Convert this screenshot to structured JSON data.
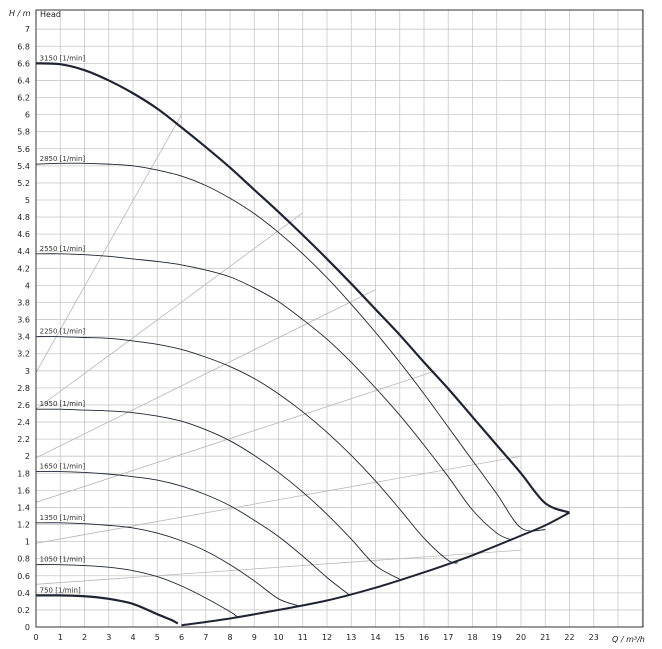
{
  "chart_data": {
    "type": "line",
    "title": "Head",
    "xlabel": "Q / m³/h",
    "ylabel": "H / m",
    "xlim": [
      0,
      25
    ],
    "ylim": [
      0,
      7.2
    ],
    "x_ticks": [
      0,
      1,
      2,
      3,
      4,
      5,
      6,
      7,
      8,
      9,
      10,
      11,
      12,
      13,
      14,
      15,
      16,
      17,
      18,
      19,
      20,
      21,
      22,
      23
    ],
    "x_tick_labels": [
      "0",
      "1",
      "2",
      "3",
      "4",
      "5",
      "6",
      "7",
      "8",
      "9",
      "10",
      "11",
      "12",
      "13",
      "14",
      "15",
      "16",
      "17",
      "18",
      "19",
      "20",
      "21",
      "22",
      "23"
    ],
    "y_ticks": [
      0,
      0.2,
      0.4,
      0.6,
      0.8,
      1,
      1.2,
      1.4,
      1.6,
      1.8,
      2,
      2.2,
      2.4,
      2.6,
      2.8,
      3,
      3.2,
      3.4,
      3.6,
      3.8,
      4,
      4.2,
      4.4,
      4.6,
      4.8,
      5,
      5.2,
      5.4,
      5.6,
      5.8,
      6,
      6.2,
      6.4,
      6.6,
      6.8,
      7
    ],
    "y_tick_labels": [
      "0",
      "0.2",
      "0.4",
      "0.6",
      "0.8",
      "1",
      "1.2",
      "1.4",
      "1.6",
      "1.8",
      "2",
      "2.2",
      "2.4",
      "2.6",
      "2.8",
      "3",
      "3.2",
      "3.4",
      "3.6",
      "3.8",
      "4",
      "4.2",
      "4.4",
      "4.6",
      "4.8",
      "5",
      "5.2",
      "5.4",
      "5.6",
      "5.8",
      "6",
      "6.2",
      "6.4",
      "6.6",
      "6.8",
      "7"
    ],
    "grid": true,
    "series": [
      {
        "name": "3150 [1/min]",
        "thick": true,
        "x": [
          0,
          1,
          2,
          3,
          4,
          5,
          6,
          7,
          8,
          9,
          10,
          11,
          12,
          13,
          14,
          15,
          16,
          17,
          18,
          19,
          20,
          21,
          22
        ],
        "y": [
          6.6,
          6.59,
          6.52,
          6.4,
          6.25,
          6.07,
          5.85,
          5.62,
          5.38,
          5.12,
          4.86,
          4.59,
          4.31,
          4.02,
          3.72,
          3.42,
          3.1,
          2.79,
          2.46,
          2.13,
          1.8,
          1.45,
          1.34
        ]
      },
      {
        "name": "2850 [1/min]",
        "x": [
          0,
          1,
          2,
          3,
          4,
          5,
          6,
          7,
          8,
          9,
          10,
          11,
          12,
          13,
          14,
          15,
          16,
          17,
          18,
          19,
          20,
          21
        ],
        "y": [
          5.42,
          5.43,
          5.43,
          5.42,
          5.4,
          5.35,
          5.28,
          5.17,
          5.02,
          4.84,
          4.62,
          4.37,
          4.09,
          3.78,
          3.45,
          3.1,
          2.73,
          2.34,
          1.95,
          1.56,
          1.16,
          1.14
        ]
      },
      {
        "name": "2550 [1/min]",
        "x": [
          0,
          1,
          2,
          3,
          4,
          5,
          6,
          7,
          8,
          9,
          10,
          11,
          12,
          13,
          14,
          15,
          16,
          17,
          18,
          19,
          19.6
        ],
        "y": [
          4.37,
          4.37,
          4.36,
          4.34,
          4.31,
          4.28,
          4.24,
          4.18,
          4.1,
          3.97,
          3.81,
          3.6,
          3.37,
          3.1,
          2.8,
          2.48,
          2.13,
          1.76,
          1.37,
          1.1,
          1.02
        ]
      },
      {
        "name": "2250 [1/min]",
        "x": [
          0,
          1,
          2,
          3,
          4,
          5,
          6,
          7,
          8,
          9,
          10,
          11,
          12,
          13,
          14,
          15,
          16,
          17,
          17.4
        ],
        "y": [
          3.4,
          3.4,
          3.39,
          3.38,
          3.35,
          3.31,
          3.25,
          3.16,
          3.05,
          2.91,
          2.73,
          2.52,
          2.28,
          2.01,
          1.71,
          1.38,
          1.04,
          0.78,
          0.75
        ]
      },
      {
        "name": "1950 [1/min]",
        "x": [
          0,
          1,
          2,
          3,
          4,
          5,
          6,
          7,
          8,
          9,
          10,
          11,
          12,
          13,
          14,
          15
        ],
        "y": [
          2.55,
          2.55,
          2.54,
          2.53,
          2.51,
          2.47,
          2.41,
          2.31,
          2.18,
          2.01,
          1.81,
          1.58,
          1.32,
          1.03,
          0.72,
          0.56
        ]
      },
      {
        "name": "1650 [1/min]",
        "x": [
          0,
          1,
          2,
          3,
          4,
          5,
          6,
          7,
          8,
          9,
          10,
          11,
          12,
          12.9
        ],
        "y": [
          1.82,
          1.82,
          1.81,
          1.79,
          1.76,
          1.72,
          1.65,
          1.55,
          1.42,
          1.25,
          1.06,
          0.83,
          0.58,
          0.38
        ]
      },
      {
        "name": "1350 [1/min]",
        "x": [
          0,
          1,
          2,
          3,
          4,
          5,
          6,
          7,
          8,
          9,
          10,
          10.8
        ],
        "y": [
          1.22,
          1.22,
          1.21,
          1.19,
          1.16,
          1.1,
          1.01,
          0.89,
          0.73,
          0.54,
          0.33,
          0.25
        ]
      },
      {
        "name": "1050 [1/min]",
        "x": [
          0,
          1,
          2,
          3,
          4,
          5,
          6,
          7,
          8,
          8.3
        ],
        "y": [
          0.73,
          0.73,
          0.72,
          0.7,
          0.66,
          0.59,
          0.48,
          0.34,
          0.18,
          0.12
        ]
      },
      {
        "name": "750 [1/min]",
        "thick": true,
        "x": [
          0,
          1,
          2,
          3,
          4,
          5,
          5.6,
          5.85
        ],
        "y": [
          0.37,
          0.37,
          0.36,
          0.33,
          0.27,
          0.15,
          0.08,
          0.04
        ]
      }
    ],
    "limit_curve": {
      "x": [
        6,
        8,
        10,
        12,
        14,
        16,
        18,
        20,
        21,
        22
      ],
      "y": [
        0.02,
        0.1,
        0.2,
        0.31,
        0.46,
        0.64,
        0.84,
        1.07,
        1.19,
        1.34
      ]
    },
    "efficiency_lines": [
      {
        "x": [
          0,
          6
        ],
        "y": [
          2.98,
          6.0
        ]
      },
      {
        "x": [
          0,
          11
        ],
        "y": [
          2.55,
          4.85
        ]
      },
      {
        "x": [
          0,
          14
        ],
        "y": [
          1.98,
          3.95
        ]
      },
      {
        "x": [
          0,
          16.5
        ],
        "y": [
          1.46,
          3.0
        ]
      },
      {
        "x": [
          0,
          20
        ],
        "y": [
          0.98,
          2.0
        ]
      },
      {
        "x": [
          0,
          20
        ],
        "y": [
          0.5,
          0.9
        ]
      }
    ],
    "series_color": "#1f2433",
    "guide_color": "#b8b8b8"
  }
}
